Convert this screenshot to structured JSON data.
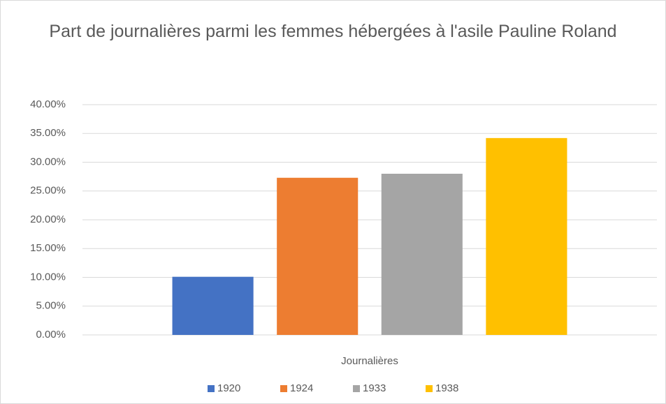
{
  "chart_data": {
    "type": "bar",
    "title": "Part de journalières parmi les femmes hébergées à l'asile Pauline Roland",
    "categories": [
      "Journalières"
    ],
    "series": [
      {
        "name": "1920",
        "color": "#4472c4",
        "values": [
          10.1
        ]
      },
      {
        "name": "1924",
        "color": "#ed7d31",
        "values": [
          27.3
        ]
      },
      {
        "name": "1933",
        "color": "#a5a5a5",
        "values": [
          28.0
        ]
      },
      {
        "name": "1938",
        "color": "#ffc000",
        "values": [
          34.2
        ]
      }
    ],
    "ylim": [
      0,
      40
    ],
    "yticks": [
      {
        "value": 0,
        "label": "0.00%"
      },
      {
        "value": 5,
        "label": "5.00%"
      },
      {
        "value": 10,
        "label": "10.00%"
      },
      {
        "value": 15,
        "label": "15.00%"
      },
      {
        "value": 20,
        "label": "20.00%"
      },
      {
        "value": 25,
        "label": "25.00%"
      },
      {
        "value": 30,
        "label": "30.00%"
      },
      {
        "value": 35,
        "label": "35.00%"
      },
      {
        "value": 40,
        "label": "40.00%"
      }
    ],
    "grid": true,
    "legend": "bottom"
  }
}
